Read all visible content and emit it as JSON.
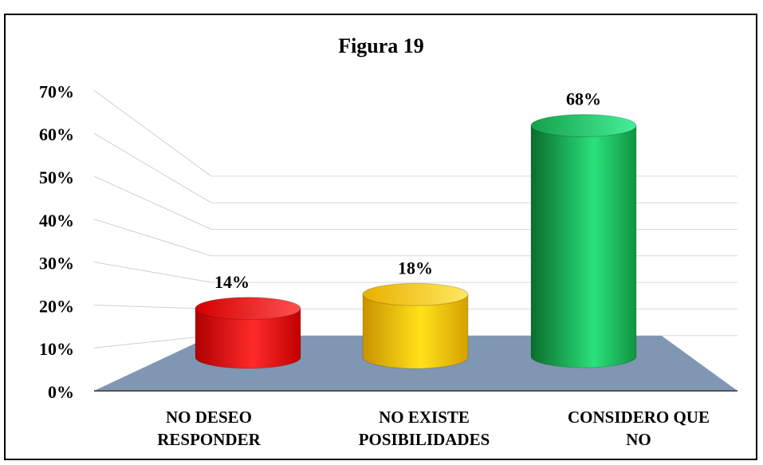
{
  "chart_data": {
    "type": "bar",
    "title": "Figura 19",
    "categories": [
      [
        "NO DESEO",
        "RESPONDER"
      ],
      [
        "NO EXISTE",
        "POSIBILIDADES"
      ],
      [
        "CONSIDERO QUE",
        "NO"
      ]
    ],
    "values": [
      14,
      18,
      68
    ],
    "value_labels": [
      "14%",
      "18%",
      "68%"
    ],
    "yticks": [
      "0%",
      "10%",
      "20%",
      "30%",
      "40%",
      "50%",
      "60%",
      "70%"
    ],
    "ylim": [
      0,
      70
    ],
    "grid": true,
    "legend": "none",
    "colors": [
      "#e81010",
      "#f2c200",
      "#17a84a"
    ],
    "floor_color": "#7f97b3"
  }
}
